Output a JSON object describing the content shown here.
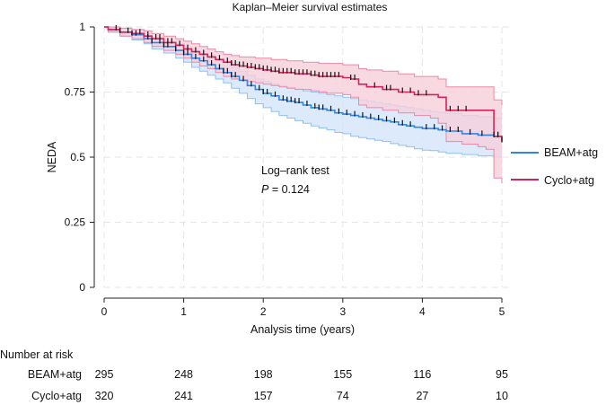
{
  "chart_data": {
    "type": "line",
    "title": "Kaplan–Meier survival estimates",
    "xlabel": "Analysis time (years)",
    "ylabel": "NEDA",
    "xlim": [
      0,
      5
    ],
    "ylim": [
      0,
      1
    ],
    "x_ticks": [
      "0",
      "1",
      "2",
      "3",
      "4",
      "5"
    ],
    "y_ticks": [
      "0",
      "0.25",
      "0.5",
      "0.75",
      "1"
    ],
    "grid": true,
    "legend_position": "right",
    "annotation": {
      "line1": "Log–rank test",
      "p_label": "P",
      "p_value": " = 0.124"
    },
    "series": [
      {
        "name": "BEAM+atg",
        "color": "#2f86e8",
        "band_fill": "#d4e5fb",
        "band_stroke": "#8ec0f4",
        "x": [
          0,
          0.05,
          0.2,
          0.35,
          0.5,
          0.6,
          0.75,
          0.9,
          1.0,
          1.1,
          1.2,
          1.3,
          1.4,
          1.5,
          1.6,
          1.7,
          1.8,
          1.9,
          2.0,
          2.1,
          2.2,
          2.3,
          2.4,
          2.5,
          2.6,
          2.7,
          2.8,
          2.9,
          3.0,
          3.1,
          3.2,
          3.3,
          3.4,
          3.5,
          3.6,
          3.7,
          3.8,
          3.9,
          4.0,
          4.1,
          4.2,
          4.3,
          4.5,
          4.7,
          4.9,
          5.0
        ],
        "y": [
          1,
          0.99,
          0.98,
          0.97,
          0.955,
          0.94,
          0.925,
          0.91,
          0.895,
          0.88,
          0.87,
          0.855,
          0.84,
          0.825,
          0.81,
          0.795,
          0.775,
          0.76,
          0.745,
          0.735,
          0.72,
          0.715,
          0.71,
          0.7,
          0.69,
          0.685,
          0.68,
          0.67,
          0.665,
          0.66,
          0.655,
          0.65,
          0.645,
          0.64,
          0.635,
          0.625,
          0.62,
          0.615,
          0.61,
          0.61,
          0.605,
          0.6,
          0.59,
          0.585,
          0.58,
          0.58
        ],
        "lower": [
          1,
          0.98,
          0.965,
          0.95,
          0.935,
          0.915,
          0.9,
          0.88,
          0.865,
          0.845,
          0.83,
          0.815,
          0.8,
          0.785,
          0.765,
          0.745,
          0.725,
          0.705,
          0.69,
          0.675,
          0.66,
          0.65,
          0.64,
          0.63,
          0.62,
          0.612,
          0.605,
          0.595,
          0.59,
          0.58,
          0.575,
          0.57,
          0.565,
          0.56,
          0.552,
          0.545,
          0.54,
          0.532,
          0.527,
          0.525,
          0.52,
          0.515,
          0.51,
          0.505,
          0.5,
          0.5
        ],
        "upper": [
          1,
          1,
          0.995,
          0.99,
          0.975,
          0.96,
          0.945,
          0.935,
          0.92,
          0.91,
          0.9,
          0.89,
          0.875,
          0.86,
          0.845,
          0.83,
          0.815,
          0.8,
          0.79,
          0.78,
          0.775,
          0.768,
          0.762,
          0.755,
          0.75,
          0.745,
          0.74,
          0.735,
          0.73,
          0.725,
          0.72,
          0.715,
          0.71,
          0.705,
          0.7,
          0.695,
          0.69,
          0.685,
          0.68,
          0.675,
          0.672,
          0.668,
          0.66,
          0.655,
          0.65,
          0.65
        ],
        "censor_x": [
          0.2,
          0.35,
          0.4,
          0.55,
          0.6,
          0.7,
          0.75,
          0.8,
          0.9,
          1.0,
          1.05,
          1.15,
          1.25,
          1.35,
          1.45,
          1.5,
          1.55,
          1.6,
          1.65,
          1.75,
          1.85,
          1.95,
          2.0,
          2.05,
          2.15,
          2.25,
          2.3,
          2.35,
          2.4,
          2.45,
          2.55,
          2.65,
          2.7,
          2.75,
          2.85,
          2.95,
          3.05,
          3.15,
          3.25,
          3.35,
          3.45,
          3.55,
          3.65,
          3.75,
          3.85,
          4.05,
          4.15,
          4.25,
          4.35,
          4.45,
          4.6,
          4.75,
          4.9,
          4.95
        ]
      },
      {
        "name": "Cyclo+atg",
        "color": "#d6245a",
        "band_fill": "#f6cfdb",
        "band_stroke": "#e88aa8",
        "x": [
          0,
          0.05,
          0.2,
          0.35,
          0.5,
          0.6,
          0.75,
          0.9,
          1.0,
          1.1,
          1.2,
          1.3,
          1.4,
          1.5,
          1.6,
          1.7,
          1.8,
          1.9,
          2.0,
          2.1,
          2.2,
          2.3,
          2.4,
          2.5,
          2.6,
          2.7,
          2.8,
          2.9,
          3.0,
          3.1,
          3.2,
          3.3,
          3.5,
          3.7,
          3.9,
          4.1,
          4.2,
          4.3,
          4.5,
          4.7,
          4.8,
          4.9,
          5.0
        ],
        "y": [
          1,
          0.99,
          0.98,
          0.975,
          0.965,
          0.955,
          0.94,
          0.93,
          0.915,
          0.905,
          0.895,
          0.885,
          0.875,
          0.865,
          0.855,
          0.85,
          0.845,
          0.84,
          0.835,
          0.83,
          0.825,
          0.825,
          0.82,
          0.82,
          0.815,
          0.81,
          0.81,
          0.81,
          0.805,
          0.8,
          0.78,
          0.77,
          0.76,
          0.75,
          0.74,
          0.74,
          0.73,
          0.68,
          0.68,
          0.68,
          0.68,
          0.58,
          0.56
        ],
        "lower": [
          1,
          0.98,
          0.965,
          0.955,
          0.94,
          0.925,
          0.91,
          0.895,
          0.88,
          0.865,
          0.85,
          0.84,
          0.825,
          0.81,
          0.8,
          0.795,
          0.79,
          0.785,
          0.78,
          0.775,
          0.77,
          0.765,
          0.76,
          0.76,
          0.755,
          0.75,
          0.745,
          0.745,
          0.74,
          0.73,
          0.7,
          0.69,
          0.68,
          0.67,
          0.66,
          0.65,
          0.63,
          0.56,
          0.55,
          0.54,
          0.53,
          0.42,
          0.4
        ],
        "upper": [
          1,
          1,
          0.995,
          0.99,
          0.985,
          0.975,
          0.965,
          0.955,
          0.945,
          0.935,
          0.925,
          0.915,
          0.905,
          0.895,
          0.89,
          0.885,
          0.885,
          0.88,
          0.88,
          0.875,
          0.875,
          0.87,
          0.87,
          0.865,
          0.865,
          0.86,
          0.86,
          0.86,
          0.855,
          0.855,
          0.84,
          0.835,
          0.83,
          0.82,
          0.81,
          0.81,
          0.8,
          0.77,
          0.77,
          0.77,
          0.77,
          0.72,
          0.7
        ],
        "censor_x": [
          0.15,
          0.3,
          0.45,
          0.55,
          0.65,
          0.7,
          0.8,
          0.85,
          0.95,
          1.05,
          1.15,
          1.25,
          1.35,
          1.45,
          1.55,
          1.6,
          1.65,
          1.7,
          1.75,
          1.8,
          1.85,
          1.9,
          1.95,
          2.0,
          2.05,
          2.1,
          2.15,
          2.2,
          2.25,
          2.3,
          2.35,
          2.4,
          2.45,
          2.5,
          2.55,
          2.6,
          2.65,
          2.7,
          2.75,
          2.8,
          2.85,
          2.9,
          2.95,
          3.1,
          3.15,
          3.4,
          3.55,
          3.6,
          3.75,
          3.85,
          3.95,
          4.05,
          4.35,
          4.45,
          4.55,
          4.95,
          5.0
        ]
      }
    ],
    "risk_table": {
      "header": "Number at risk",
      "rows": [
        {
          "label": "BEAM+atg",
          "values": [
            "295",
            "248",
            "198",
            "155",
            "116",
            "95"
          ]
        },
        {
          "label": "Cyclo+atg",
          "values": [
            "320",
            "241",
            "157",
            "74",
            "27",
            "10"
          ]
        }
      ]
    }
  }
}
